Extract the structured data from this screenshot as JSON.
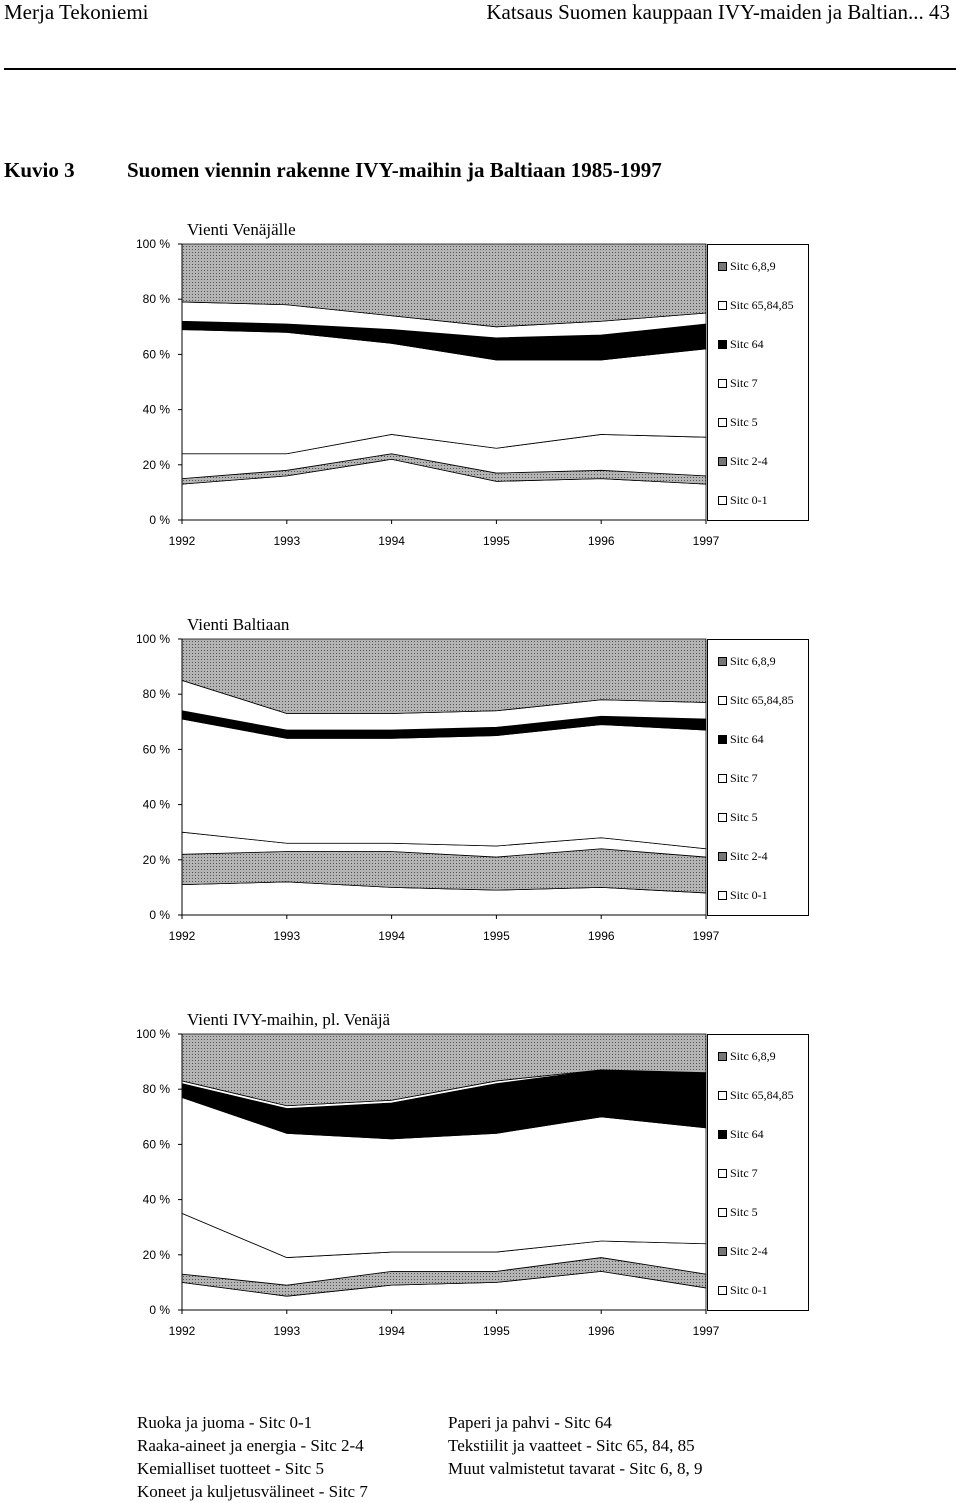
{
  "header": {
    "author": "Merja Tekoniemi",
    "running_title": "Katsaus Suomen kauppaan IVY-maiden ja Baltian... 43"
  },
  "figure": {
    "label": "Kuvio 3",
    "title": "Suomen viennin rakenne IVY-maihin ja Baltiaan 1985-1997"
  },
  "colors": {
    "sitc_01": "#ffffff",
    "sitc_24": "#9a9a9a",
    "sitc_5": "#ffffff",
    "sitc_7": "#ffffff",
    "sitc_64": "#000000",
    "sitc_658485": "#ffffff",
    "sitc_689": "#a6a6a6"
  },
  "chart_data": [
    {
      "type": "area",
      "title": "Vienti Venäjälle",
      "stacked": "percent",
      "x": [
        "1992",
        "1993",
        "1994",
        "1995",
        "1996",
        "1997"
      ],
      "y_ticks": [
        "0 %",
        "20 %",
        "40 %",
        "60 %",
        "80 %",
        "100 %"
      ],
      "ylim": [
        0,
        100
      ],
      "series": [
        {
          "name": "Sitc 0-1",
          "key": "sitc_01",
          "values": [
            13,
            16,
            22,
            14,
            15,
            13
          ]
        },
        {
          "name": "Sitc 2-4",
          "key": "sitc_24",
          "values": [
            2,
            2,
            2,
            3,
            3,
            3
          ]
        },
        {
          "name": "Sitc 5",
          "key": "sitc_5",
          "values": [
            9,
            6,
            7,
            9,
            13,
            14
          ]
        },
        {
          "name": "Sitc 7",
          "key": "sitc_7",
          "values": [
            45,
            44,
            33,
            32,
            27,
            32
          ]
        },
        {
          "name": "Sitc 64",
          "key": "sitc_64",
          "values": [
            3,
            3,
            5,
            8,
            9,
            9
          ]
        },
        {
          "name": "Sitc 65,84,85",
          "key": "sitc_658485",
          "values": [
            7,
            7,
            5,
            4,
            5,
            4
          ]
        },
        {
          "name": "Sitc 6,8,9",
          "key": "sitc_689",
          "values": [
            21,
            22,
            26,
            30,
            28,
            25
          ]
        }
      ]
    },
    {
      "type": "area",
      "title": "Vienti Baltiaan",
      "stacked": "percent",
      "x": [
        "1992",
        "1993",
        "1994",
        "1995",
        "1996",
        "1997"
      ],
      "y_ticks": [
        "0 %",
        "20 %",
        "40 %",
        "60 %",
        "80 %",
        "100 %"
      ],
      "ylim": [
        0,
        100
      ],
      "series": [
        {
          "name": "Sitc 0-1",
          "key": "sitc_01",
          "values": [
            11,
            12,
            10,
            9,
            10,
            8
          ]
        },
        {
          "name": "Sitc 2-4",
          "key": "sitc_24",
          "values": [
            11,
            11,
            13,
            12,
            14,
            13
          ]
        },
        {
          "name": "Sitc 5",
          "key": "sitc_5",
          "values": [
            8,
            3,
            3,
            4,
            4,
            3
          ]
        },
        {
          "name": "Sitc 7",
          "key": "sitc_7",
          "values": [
            41,
            38,
            38,
            40,
            41,
            43
          ]
        },
        {
          "name": "Sitc 64",
          "key": "sitc_64",
          "values": [
            3,
            3,
            3,
            3,
            3,
            4
          ]
        },
        {
          "name": "Sitc 65,84,85",
          "key": "sitc_658485",
          "values": [
            11,
            6,
            6,
            6,
            6,
            6
          ]
        },
        {
          "name": "Sitc 6,8,9",
          "key": "sitc_689",
          "values": [
            15,
            27,
            27,
            26,
            22,
            23
          ]
        }
      ]
    },
    {
      "type": "area",
      "title": "Vienti IVY-maihin, pl. Venäjä",
      "stacked": "percent",
      "x": [
        "1992",
        "1993",
        "1994",
        "1995",
        "1996",
        "1997"
      ],
      "y_ticks": [
        "0 %",
        "20 %",
        "40 %",
        "60 %",
        "80 %",
        "100 %"
      ],
      "ylim": [
        0,
        100
      ],
      "series": [
        {
          "name": "Sitc 0-1",
          "key": "sitc_01",
          "values": [
            10,
            5,
            9,
            10,
            14,
            8
          ]
        },
        {
          "name": "Sitc 2-4",
          "key": "sitc_24",
          "values": [
            3,
            4,
            5,
            4,
            5,
            5
          ]
        },
        {
          "name": "Sitc 5",
          "key": "sitc_5",
          "values": [
            22,
            10,
            7,
            7,
            6,
            11
          ]
        },
        {
          "name": "Sitc 7",
          "key": "sitc_7",
          "values": [
            42,
            45,
            41,
            43,
            45,
            42
          ]
        },
        {
          "name": "Sitc 64",
          "key": "sitc_64",
          "values": [
            5,
            9,
            13,
            18,
            17,
            20
          ]
        },
        {
          "name": "Sitc 65,84,85",
          "key": "sitc_658485",
          "values": [
            1,
            1,
            1,
            1,
            0,
            0
          ]
        },
        {
          "name": "Sitc 6,8,9",
          "key": "sitc_689",
          "values": [
            17,
            26,
            24,
            17,
            13,
            14
          ]
        }
      ]
    }
  ],
  "footnote": {
    "left": [
      "Ruoka ja juoma - Sitc 0-1",
      "Raaka-aineet ja energia - Sitc 2-4",
      "Kemialliset tuotteet - Sitc 5",
      "Koneet ja kuljetusvälineet - Sitc 7"
    ],
    "right": [
      "Paperi ja pahvi - Sitc 64",
      "Tekstiilit ja vaatteet - Sitc 65, 84, 85",
      "Muut valmistetut tavarat - Sitc 6, 8, 9"
    ]
  }
}
